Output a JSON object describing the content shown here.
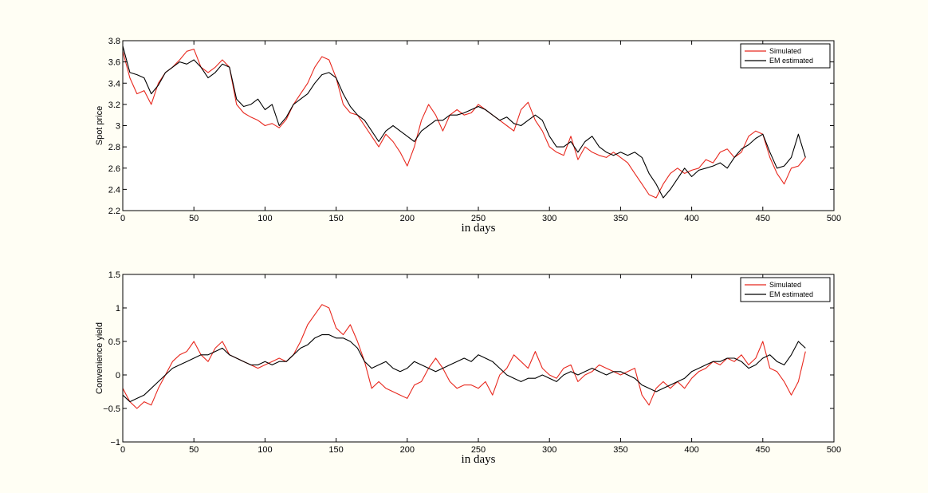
{
  "chart_data": [
    {
      "type": "line",
      "title": "",
      "xlabel": "in days",
      "ylabel": "Spot price",
      "xlim": [
        0,
        500
      ],
      "ylim": [
        2.2,
        3.8
      ],
      "xticks": [
        0,
        50,
        100,
        150,
        200,
        250,
        300,
        350,
        400,
        450,
        500
      ],
      "xtick_labels": [
        "0",
        "50",
        "100",
        "150",
        "200",
        "250",
        "300",
        "350",
        "400",
        "450",
        "500"
      ],
      "yticks": [
        2.2,
        2.4,
        2.6,
        2.8,
        3.0,
        3.2,
        3.4,
        3.6,
        3.8
      ],
      "ytick_labels": [
        "2.2",
        "2.4",
        "2.6",
        "2.8",
        "3",
        "3.2",
        "3.4",
        "3.6",
        "3.8"
      ],
      "grid": false,
      "legend": "top-right",
      "series": [
        {
          "name": "Simulated",
          "color": "#e8281e",
          "x": [
            0,
            5,
            10,
            15,
            20,
            25,
            30,
            35,
            40,
            45,
            50,
            55,
            60,
            65,
            70,
            75,
            80,
            85,
            90,
            95,
            100,
            105,
            110,
            115,
            120,
            125,
            130,
            135,
            140,
            145,
            150,
            155,
            160,
            165,
            170,
            175,
            180,
            185,
            190,
            195,
            200,
            205,
            210,
            215,
            220,
            225,
            230,
            235,
            240,
            245,
            250,
            255,
            260,
            265,
            270,
            275,
            280,
            285,
            290,
            295,
            300,
            305,
            310,
            315,
            320,
            325,
            330,
            335,
            340,
            345,
            350,
            355,
            360,
            365,
            370,
            375,
            380,
            385,
            390,
            395,
            400,
            405,
            410,
            415,
            420,
            425,
            430,
            435,
            440,
            445,
            450,
            455,
            460,
            465,
            470,
            475,
            480
          ],
          "values": [
            3.7,
            3.45,
            3.3,
            3.33,
            3.2,
            3.4,
            3.5,
            3.55,
            3.62,
            3.7,
            3.72,
            3.55,
            3.5,
            3.55,
            3.62,
            3.55,
            3.2,
            3.12,
            3.08,
            3.05,
            3.0,
            3.02,
            2.98,
            3.06,
            3.2,
            3.3,
            3.4,
            3.55,
            3.65,
            3.62,
            3.45,
            3.2,
            3.12,
            3.1,
            3.0,
            2.9,
            2.8,
            2.92,
            2.85,
            2.75,
            2.62,
            2.8,
            3.05,
            3.2,
            3.1,
            2.95,
            3.1,
            3.15,
            3.1,
            3.12,
            3.2,
            3.15,
            3.1,
            3.05,
            3.0,
            2.95,
            3.15,
            3.22,
            3.05,
            2.95,
            2.8,
            2.75,
            2.72,
            2.9,
            2.68,
            2.8,
            2.75,
            2.72,
            2.7,
            2.75,
            2.7,
            2.65,
            2.55,
            2.45,
            2.35,
            2.32,
            2.45,
            2.55,
            2.6,
            2.55,
            2.58,
            2.6,
            2.68,
            2.65,
            2.75,
            2.78,
            2.7,
            2.75,
            2.9,
            2.95,
            2.92,
            2.7,
            2.55,
            2.45,
            2.6,
            2.62,
            2.7
          ]
        },
        {
          "name": "EM estimated",
          "color": "#000000",
          "x": [
            0,
            5,
            10,
            15,
            20,
            25,
            30,
            35,
            40,
            45,
            50,
            55,
            60,
            65,
            70,
            75,
            80,
            85,
            90,
            95,
            100,
            105,
            110,
            115,
            120,
            125,
            130,
            135,
            140,
            145,
            150,
            155,
            160,
            165,
            170,
            175,
            180,
            185,
            190,
            195,
            200,
            205,
            210,
            215,
            220,
            225,
            230,
            235,
            240,
            245,
            250,
            255,
            260,
            265,
            270,
            275,
            280,
            285,
            290,
            295,
            300,
            305,
            310,
            315,
            320,
            325,
            330,
            335,
            340,
            345,
            350,
            355,
            360,
            365,
            370,
            375,
            380,
            385,
            390,
            395,
            400,
            405,
            410,
            415,
            420,
            425,
            430,
            435,
            440,
            445,
            450,
            455,
            460,
            465,
            470,
            475,
            480
          ],
          "values": [
            3.75,
            3.5,
            3.48,
            3.45,
            3.3,
            3.38,
            3.5,
            3.55,
            3.6,
            3.58,
            3.62,
            3.55,
            3.45,
            3.5,
            3.58,
            3.55,
            3.25,
            3.18,
            3.2,
            3.25,
            3.15,
            3.2,
            3.0,
            3.08,
            3.2,
            3.25,
            3.3,
            3.4,
            3.48,
            3.5,
            3.45,
            3.3,
            3.18,
            3.1,
            3.05,
            2.95,
            2.85,
            2.95,
            3.0,
            2.95,
            2.9,
            2.85,
            2.95,
            3.0,
            3.05,
            3.05,
            3.1,
            3.1,
            3.12,
            3.15,
            3.18,
            3.15,
            3.1,
            3.05,
            3.08,
            3.02,
            3.0,
            3.05,
            3.1,
            3.05,
            2.9,
            2.8,
            2.8,
            2.85,
            2.75,
            2.85,
            2.9,
            2.8,
            2.75,
            2.72,
            2.75,
            2.72,
            2.75,
            2.7,
            2.55,
            2.45,
            2.32,
            2.4,
            2.5,
            2.6,
            2.52,
            2.58,
            2.6,
            2.62,
            2.65,
            2.6,
            2.7,
            2.78,
            2.82,
            2.88,
            2.92,
            2.75,
            2.6,
            2.62,
            2.7,
            2.92,
            2.7
          ]
        }
      ]
    },
    {
      "type": "line",
      "title": "",
      "xlabel": "in days",
      "ylabel": "Convenience yield",
      "xlim": [
        0,
        500
      ],
      "ylim": [
        -1,
        1.5
      ],
      "xticks": [
        0,
        50,
        100,
        150,
        200,
        250,
        300,
        350,
        400,
        450,
        500
      ],
      "xtick_labels": [
        "0",
        "50",
        "100",
        "150",
        "200",
        "250",
        "300",
        "350",
        "400",
        "450",
        "500"
      ],
      "yticks": [
        -1,
        -0.5,
        0,
        0.5,
        1,
        1.5
      ],
      "ytick_labels": [
        "−1",
        "−0.5",
        "0",
        "0.5",
        "1",
        "1.5"
      ],
      "grid": false,
      "legend": "top-right",
      "series": [
        {
          "name": "Simulated",
          "color": "#e8281e",
          "x": [
            0,
            5,
            10,
            15,
            20,
            25,
            30,
            35,
            40,
            45,
            50,
            55,
            60,
            65,
            70,
            75,
            80,
            85,
            90,
            95,
            100,
            105,
            110,
            115,
            120,
            125,
            130,
            135,
            140,
            145,
            150,
            155,
            160,
            165,
            170,
            175,
            180,
            185,
            190,
            195,
            200,
            205,
            210,
            215,
            220,
            225,
            230,
            235,
            240,
            245,
            250,
            255,
            260,
            265,
            270,
            275,
            280,
            285,
            290,
            295,
            300,
            305,
            310,
            315,
            320,
            325,
            330,
            335,
            340,
            345,
            350,
            355,
            360,
            365,
            370,
            375,
            380,
            385,
            390,
            395,
            400,
            405,
            410,
            415,
            420,
            425,
            430,
            435,
            440,
            445,
            450,
            455,
            460,
            465,
            470,
            475,
            480
          ],
          "values": [
            -0.2,
            -0.4,
            -0.5,
            -0.4,
            -0.45,
            -0.2,
            0.0,
            0.2,
            0.3,
            0.35,
            0.5,
            0.3,
            0.2,
            0.4,
            0.5,
            0.3,
            0.25,
            0.2,
            0.15,
            0.1,
            0.15,
            0.2,
            0.25,
            0.2,
            0.3,
            0.5,
            0.75,
            0.9,
            1.05,
            1.0,
            0.7,
            0.6,
            0.75,
            0.5,
            0.2,
            -0.2,
            -0.1,
            -0.2,
            -0.25,
            -0.3,
            -0.35,
            -0.15,
            -0.1,
            0.1,
            0.25,
            0.1,
            -0.1,
            -0.2,
            -0.15,
            -0.15,
            -0.2,
            -0.1,
            -0.3,
            0.0,
            0.1,
            0.3,
            0.2,
            0.1,
            0.35,
            0.1,
            0.0,
            -0.05,
            0.1,
            0.15,
            -0.1,
            0.0,
            0.05,
            0.15,
            0.1,
            0.05,
            0.0,
            0.05,
            0.1,
            -0.3,
            -0.45,
            -0.2,
            -0.1,
            -0.2,
            -0.1,
            -0.2,
            -0.05,
            0.05,
            0.1,
            0.2,
            0.15,
            0.25,
            0.2,
            0.3,
            0.15,
            0.25,
            0.5,
            0.1,
            0.05,
            -0.1,
            -0.3,
            -0.1,
            0.35
          ]
        },
        {
          "name": "EM estimated",
          "color": "#000000",
          "x": [
            0,
            5,
            10,
            15,
            20,
            25,
            30,
            35,
            40,
            45,
            50,
            55,
            60,
            65,
            70,
            75,
            80,
            85,
            90,
            95,
            100,
            105,
            110,
            115,
            120,
            125,
            130,
            135,
            140,
            145,
            150,
            155,
            160,
            165,
            170,
            175,
            180,
            185,
            190,
            195,
            200,
            205,
            210,
            215,
            220,
            225,
            230,
            235,
            240,
            245,
            250,
            255,
            260,
            265,
            270,
            275,
            280,
            285,
            290,
            295,
            300,
            305,
            310,
            315,
            320,
            325,
            330,
            335,
            340,
            345,
            350,
            355,
            360,
            365,
            370,
            375,
            380,
            385,
            390,
            395,
            400,
            405,
            410,
            415,
            420,
            425,
            430,
            435,
            440,
            445,
            450,
            455,
            460,
            465,
            470,
            475,
            480
          ],
          "values": [
            -0.3,
            -0.4,
            -0.35,
            -0.3,
            -0.2,
            -0.1,
            0.0,
            0.1,
            0.15,
            0.2,
            0.25,
            0.3,
            0.3,
            0.35,
            0.4,
            0.3,
            0.25,
            0.2,
            0.15,
            0.15,
            0.2,
            0.15,
            0.2,
            0.2,
            0.3,
            0.4,
            0.45,
            0.55,
            0.6,
            0.6,
            0.55,
            0.55,
            0.5,
            0.4,
            0.2,
            0.1,
            0.15,
            0.2,
            0.1,
            0.05,
            0.1,
            0.2,
            0.15,
            0.1,
            0.05,
            0.1,
            0.15,
            0.2,
            0.25,
            0.2,
            0.3,
            0.25,
            0.2,
            0.1,
            0.0,
            -0.05,
            -0.1,
            -0.05,
            -0.05,
            0.0,
            -0.05,
            -0.1,
            0.0,
            0.05,
            0.0,
            0.05,
            0.1,
            0.05,
            0.0,
            0.05,
            0.05,
            0.0,
            -0.05,
            -0.15,
            -0.2,
            -0.25,
            -0.2,
            -0.15,
            -0.1,
            -0.05,
            0.05,
            0.1,
            0.15,
            0.2,
            0.2,
            0.25,
            0.25,
            0.2,
            0.1,
            0.15,
            0.25,
            0.3,
            0.2,
            0.15,
            0.3,
            0.5,
            0.4
          ]
        }
      ]
    }
  ]
}
